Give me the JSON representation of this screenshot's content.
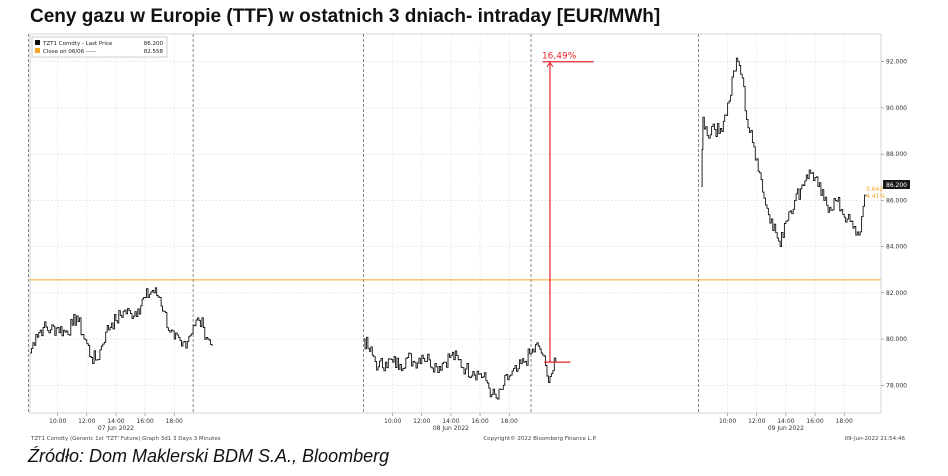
{
  "title": "Ceny gazu w Europie (TTF) w ostatnich 3 dniach- intraday [EUR/MWh]",
  "source": "Źródło: Dom Maklerski BDM S.A., Bloomberg",
  "footer": {
    "left": "TZT1 Comdty (Generic 1st 'TZT' Future) Graph 3d1 3 Days 3 Minutes",
    "center": "Copyright© 2022 Bloomberg Finance L.P.",
    "right": "09-Jun-2022 21:54:46"
  },
  "chart_data": {
    "type": "line",
    "ylim": [
      76800,
      93200
    ],
    "yticks": [
      "92.000",
      "90.000",
      "88.000",
      "86.000",
      "84.000",
      "82.000",
      "80.000",
      "78.000"
    ],
    "ytick_values": [
      92000,
      90000,
      88000,
      86000,
      84000,
      82000,
      80000,
      78000
    ],
    "xtick_labels": [
      "10:00",
      "12:00",
      "14:00",
      "16:00",
      "18:00",
      "10:00",
      "12:00",
      "14:00",
      "16:00",
      "18:00",
      "10:00",
      "12:00",
      "14:00",
      "16:00",
      "18:00"
    ],
    "xtick_hours": [
      10,
      12,
      14,
      16,
      18,
      33,
      35,
      37,
      39,
      41,
      56,
      58,
      60,
      62,
      64
    ],
    "day_labels": [
      {
        "label": "07 Jun 2022",
        "hour": 14
      },
      {
        "label": "08 Jun 2022",
        "hour": 37
      },
      {
        "label": "09 Jun 2022",
        "hour": 60
      }
    ],
    "day_separator_hours": [
      8,
      19.3,
      31,
      42.5,
      54
    ],
    "hour_range": [
      8.1,
      65.5
    ],
    "legend": [
      {
        "label": "TZT1 Comdty - Last Price",
        "value": "86.200",
        "color": "#111111"
      },
      {
        "label": "Close on 06/06 -----",
        "value": "82.558",
        "color": "#f5a623"
      }
    ],
    "reference_line": {
      "value": 82558,
      "color": "#f5a623"
    },
    "last_price_tag": {
      "value": "86.200",
      "color": "#1a1a1a"
    },
    "orange_tags": [
      "3.642",
      "4.41%"
    ],
    "annotation": {
      "text": "16,49%",
      "low": 79000,
      "high": 92000,
      "hour": 43.8,
      "color": "#e8232a"
    },
    "series": [
      {
        "color": "#111111",
        "points": [
          [
            8.1,
            79400
          ],
          [
            8.5,
            80200
          ],
          [
            9.0,
            80500
          ],
          [
            9.5,
            80400
          ],
          [
            10.0,
            80500
          ],
          [
            10.5,
            80300
          ],
          [
            11.0,
            80600
          ],
          [
            11.3,
            81000
          ],
          [
            11.7,
            80200
          ],
          [
            12.0,
            79800
          ],
          [
            12.3,
            79200
          ],
          [
            12.7,
            79100
          ],
          [
            13.0,
            79700
          ],
          [
            13.3,
            80300
          ],
          [
            13.7,
            80700
          ],
          [
            14.0,
            80800
          ],
          [
            14.5,
            81200
          ],
          [
            15.0,
            81100
          ],
          [
            15.5,
            81300
          ],
          [
            16.0,
            81800
          ],
          [
            16.5,
            82100
          ],
          [
            17.0,
            81800
          ],
          [
            17.3,
            81200
          ],
          [
            17.7,
            80300
          ],
          [
            18.0,
            80000
          ],
          [
            18.5,
            79700
          ],
          [
            19.0,
            80100
          ],
          [
            19.3,
            80600
          ],
          [
            19.7,
            80800
          ],
          [
            20.0,
            80500
          ],
          [
            20.3,
            80000
          ],
          [
            20.6,
            79700
          ],
          [
            31.0,
            80000
          ],
          [
            31.3,
            79600
          ],
          [
            31.6,
            79300
          ],
          [
            32.0,
            78800
          ],
          [
            32.5,
            79000
          ],
          [
            33.0,
            79000
          ],
          [
            33.5,
            78900
          ],
          [
            34.0,
            79200
          ],
          [
            34.5,
            79000
          ],
          [
            35.0,
            79300
          ],
          [
            35.5,
            79100
          ],
          [
            36.0,
            78800
          ],
          [
            36.5,
            79000
          ],
          [
            37.0,
            79300
          ],
          [
            37.5,
            79100
          ],
          [
            38.0,
            78700
          ],
          [
            38.5,
            78600
          ],
          [
            39.0,
            78500
          ],
          [
            39.5,
            78100
          ],
          [
            39.8,
            77600
          ],
          [
            40.2,
            77400
          ],
          [
            40.6,
            78000
          ],
          [
            41.0,
            78400
          ],
          [
            41.5,
            78600
          ],
          [
            42.0,
            79000
          ],
          [
            42.5,
            79400
          ],
          [
            43.0,
            79700
          ],
          [
            43.3,
            79300
          ],
          [
            43.6,
            78400
          ],
          [
            43.9,
            78500
          ],
          [
            44.2,
            79000
          ],
          [
            54.2,
            86600
          ],
          [
            54.3,
            89600
          ],
          [
            54.6,
            88800
          ],
          [
            55.0,
            89300
          ],
          [
            55.4,
            88900
          ],
          [
            55.8,
            89700
          ],
          [
            56.1,
            90300
          ],
          [
            56.4,
            91600
          ],
          [
            56.7,
            92000
          ],
          [
            57.0,
            91300
          ],
          [
            57.3,
            89500
          ],
          [
            57.7,
            88500
          ],
          [
            58.0,
            87800
          ],
          [
            58.3,
            86900
          ],
          [
            58.6,
            85800
          ],
          [
            59.0,
            85200
          ],
          [
            59.3,
            84600
          ],
          [
            59.6,
            84000
          ],
          [
            59.9,
            85000
          ],
          [
            60.2,
            85500
          ],
          [
            60.6,
            86000
          ],
          [
            61.0,
            86500
          ],
          [
            61.4,
            87100
          ],
          [
            61.8,
            87200
          ],
          [
            62.2,
            86600
          ],
          [
            62.6,
            86000
          ],
          [
            63.0,
            85700
          ],
          [
            63.4,
            86000
          ],
          [
            63.8,
            85600
          ],
          [
            64.2,
            85200
          ],
          [
            64.6,
            84800
          ],
          [
            65.0,
            84500
          ],
          [
            65.2,
            85300
          ],
          [
            65.5,
            86200
          ]
        ]
      }
    ]
  }
}
